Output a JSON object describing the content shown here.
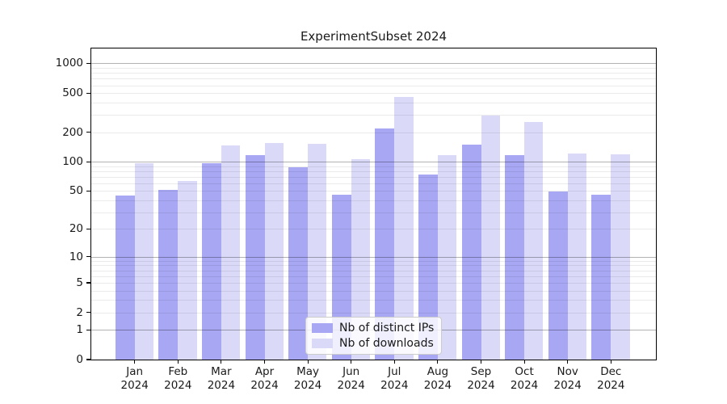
{
  "title": "ExperimentSubset 2024",
  "colors": {
    "background": "#ffffff",
    "text": "#1a1a1a",
    "major_grid": "rgba(0,0,0,0.30)",
    "minor_grid": "rgba(0,0,0,0.08)",
    "ips_bar": "#a7a7f3",
    "downloads_bar": "#dadaf8"
  },
  "chart_data": {
    "type": "bar",
    "title": "ExperimentSubset 2024",
    "categories": [
      "Jan 2024",
      "Feb 2024",
      "Mar 2024",
      "Apr 2024",
      "May 2024",
      "Jun 2024",
      "Jul 2024",
      "Aug 2024",
      "Sep 2024",
      "Oct 2024",
      "Nov 2024",
      "Dec 2024"
    ],
    "month_labels": [
      "Jan",
      "Feb",
      "Mar",
      "Apr",
      "May",
      "Jun",
      "Jul",
      "Aug",
      "Sep",
      "Oct",
      "Nov",
      "Dec"
    ],
    "year_label": "2024",
    "series": [
      {
        "name": "Nb of distinct IPs",
        "color": "#a7a7f3",
        "values": [
          45,
          51,
          96,
          117,
          87,
          46,
          217,
          74,
          149,
          117,
          49,
          46
        ]
      },
      {
        "name": "Nb of downloads",
        "color": "#dadaf8",
        "values": [
          96,
          64,
          147,
          155,
          152,
          106,
          454,
          117,
          297,
          256,
          122,
          119
        ]
      }
    ],
    "y_ticks": [
      0,
      1,
      2,
      5,
      10,
      20,
      50,
      100,
      200,
      500,
      1000
    ],
    "y_tick_labels": [
      "0",
      "1",
      "2",
      "5",
      "10",
      "20",
      "50",
      "100",
      "200",
      "500",
      "1000"
    ],
    "y_scale": "symlog",
    "ylim": [
      0,
      1420
    ],
    "xlabel": "",
    "ylabel": "",
    "grid": "both",
    "legend_position": "lower-center-inside"
  }
}
